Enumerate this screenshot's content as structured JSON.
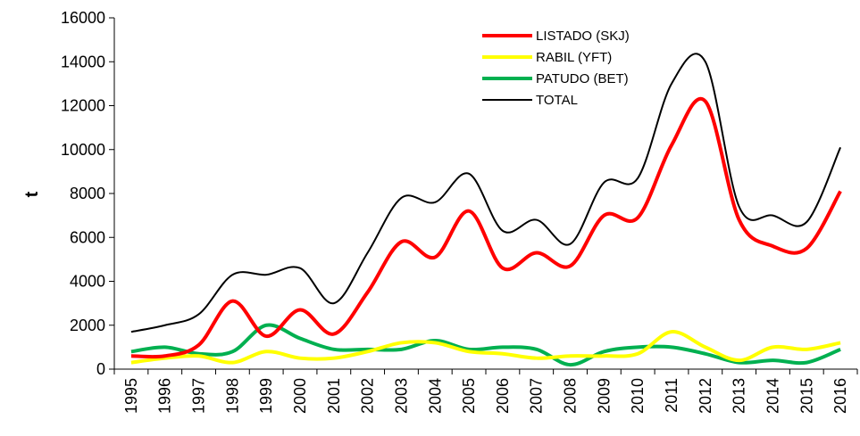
{
  "chart_data": {
    "type": "line",
    "y_label": "t",
    "categories": [
      "1995",
      "1996",
      "1997",
      "1998",
      "1999",
      "2000",
      "2001",
      "2002",
      "2003",
      "2004",
      "2005",
      "2006",
      "2007",
      "2008",
      "2009",
      "2010",
      "2011",
      "2012",
      "2013",
      "2014",
      "2015",
      "2016"
    ],
    "series": [
      {
        "name": "LISTADO (SKJ)",
        "color": "#ff0000",
        "width": 4,
        "values": [
          600,
          600,
          1100,
          3100,
          1500,
          2700,
          1600,
          3500,
          5800,
          5100,
          7200,
          4600,
          5300,
          4700,
          7000,
          6900,
          10200,
          12200,
          6800,
          5600,
          5500,
          8100
        ]
      },
      {
        "name": "RABIL (YFT)",
        "color": "#ffff00",
        "width": 4,
        "values": [
          300,
          500,
          600,
          300,
          800,
          500,
          500,
          800,
          1200,
          1200,
          800,
          700,
          500,
          600,
          600,
          700,
          1700,
          1000,
          400,
          1000,
          900,
          1200
        ]
      },
      {
        "name": "PATUDO (BET)",
        "color": "#00b050",
        "width": 4,
        "values": [
          800,
          1000,
          700,
          800,
          2000,
          1400,
          900,
          900,
          900,
          1300,
          900,
          1000,
          900,
          200,
          800,
          1000,
          1000,
          700,
          300,
          400,
          300,
          900
        ]
      },
      {
        "name": "TOTAL",
        "color": "#000000",
        "width": 2,
        "values": [
          1700,
          2000,
          2500,
          4300,
          4300,
          4600,
          3000,
          5300,
          7800,
          7600,
          8900,
          6300,
          6800,
          5700,
          8500,
          8700,
          13000,
          14000,
          7400,
          7000,
          6700,
          10100
        ]
      }
    ],
    "ylim": [
      0,
      16000
    ],
    "yticks": [
      0,
      2000,
      4000,
      6000,
      8000,
      10000,
      12000,
      14000,
      16000
    ]
  }
}
